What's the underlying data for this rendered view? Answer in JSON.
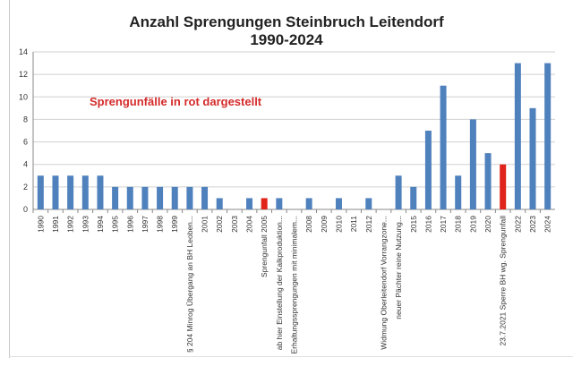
{
  "chart_data": {
    "type": "bar",
    "title": "Anzahl Sprengungen Steinbruch Leitendorf",
    "subtitle": "1990-2024",
    "annotation": "Sprengunfälle in rot dargestellt",
    "xlabel": "",
    "ylabel": "",
    "ylim": [
      0,
      14
    ],
    "yticks": [
      0,
      2,
      4,
      6,
      8,
      10,
      12,
      14
    ],
    "grid": true,
    "legend": "none",
    "colors": {
      "normal": "#4f81bd",
      "accident": "#e0231b"
    },
    "categories": [
      "1990",
      "1991",
      "1992",
      "1993",
      "1994",
      "1995",
      "1996",
      "1997",
      "1998",
      "1999",
      "§ 204  Minrog Übergang an BH Leoben...",
      "2001",
      "2002",
      "2003",
      "2004",
      "Sprengunfall 2005",
      "ab hier Einstellung der Kalkproduktion...",
      "Erhaltungssprengungen mit minimalem...",
      "2008",
      "2009",
      "2010",
      "2011",
      "2012",
      "Widmung Oberleitendorf Vorrangzone...",
      "neuer Pächter reine Nutzung...",
      "2015",
      "2016",
      "2017",
      "2018",
      "2019",
      "2020",
      "23.7.2021 Sperre BH wg. Sprengunfall",
      "2022",
      "2023",
      "2024"
    ],
    "values": [
      3,
      3,
      3,
      3,
      3,
      2,
      2,
      2,
      2,
      2,
      2,
      2,
      1,
      0,
      1,
      1,
      1,
      0,
      1,
      0,
      1,
      0,
      1,
      0,
      3,
      2,
      7,
      11,
      3,
      8,
      5,
      4,
      13,
      9,
      13
    ],
    "accident": [
      false,
      false,
      false,
      false,
      false,
      false,
      false,
      false,
      false,
      false,
      false,
      false,
      false,
      false,
      false,
      true,
      false,
      false,
      false,
      false,
      false,
      false,
      false,
      false,
      false,
      false,
      false,
      false,
      false,
      false,
      false,
      true,
      false,
      false,
      false
    ]
  }
}
